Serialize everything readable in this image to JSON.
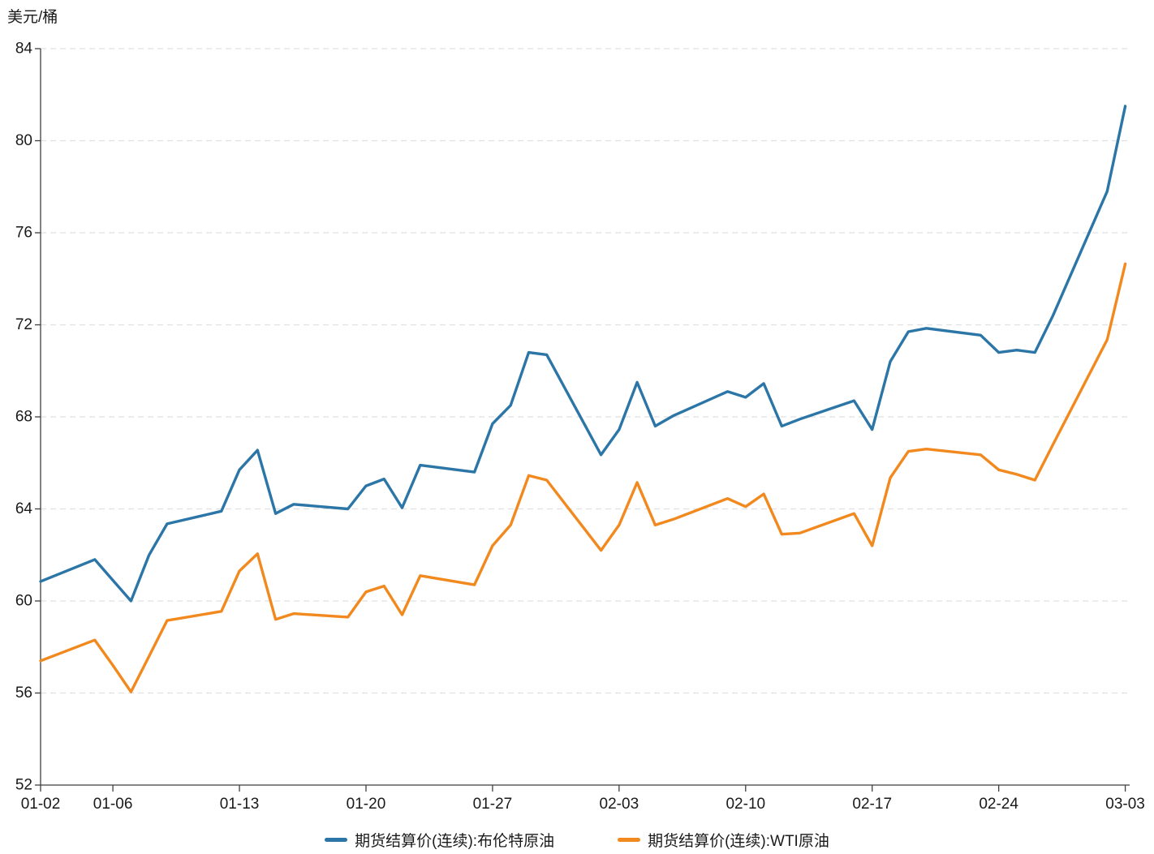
{
  "chart_data": {
    "type": "line",
    "title": "",
    "ylabel": "美元/桶",
    "ylim": [
      52,
      84
    ],
    "y_ticks": [
      52,
      56,
      60,
      64,
      68,
      72,
      76,
      80,
      84
    ],
    "grid": "horizontal-dashed",
    "legend_position": "bottom-center",
    "x_axis_mode": "calendar-days, trading days plotted, weekends skipped",
    "x_ticks": [
      {
        "label": "01-02",
        "offset": 0
      },
      {
        "label": "01-06",
        "offset": 4
      },
      {
        "label": "01-13",
        "offset": 11
      },
      {
        "label": "01-20",
        "offset": 18
      },
      {
        "label": "01-27",
        "offset": 25
      },
      {
        "label": "02-03",
        "offset": 32
      },
      {
        "label": "02-10",
        "offset": 39
      },
      {
        "label": "02-17",
        "offset": 46
      },
      {
        "label": "02-24",
        "offset": 53
      },
      {
        "label": "03-03",
        "offset": 60
      }
    ],
    "dates": [
      "01-02",
      "01-05",
      "01-06",
      "01-07",
      "01-08",
      "01-09",
      "01-12",
      "01-13",
      "01-14",
      "01-15",
      "01-16",
      "01-19",
      "01-20",
      "01-21",
      "01-22",
      "01-23",
      "01-26",
      "01-27",
      "01-28",
      "01-29",
      "01-30",
      "02-02",
      "02-03",
      "02-04",
      "02-05",
      "02-06",
      "02-09",
      "02-10",
      "02-11",
      "02-12",
      "02-13",
      "02-16",
      "02-17",
      "02-18",
      "02-19",
      "02-20",
      "02-23",
      "02-24",
      "02-25",
      "02-26",
      "02-27",
      "03-02",
      "03-03"
    ],
    "x_offsets": [
      0,
      3,
      4,
      5,
      6,
      7,
      10,
      11,
      12,
      13,
      14,
      17,
      18,
      19,
      20,
      21,
      24,
      25,
      26,
      27,
      28,
      31,
      32,
      33,
      34,
      35,
      38,
      39,
      40,
      41,
      42,
      45,
      46,
      47,
      48,
      49,
      52,
      53,
      54,
      55,
      56,
      59,
      60
    ],
    "series": [
      {
        "name": "期货结算价(连续):布伦特原油",
        "color": "#2c76a7",
        "values": [
          60.85,
          61.8,
          60.9,
          60.0,
          62.0,
          63.35,
          63.9,
          65.7,
          66.55,
          63.8,
          64.2,
          64.0,
          65.0,
          65.3,
          64.05,
          65.9,
          65.6,
          67.7,
          68.5,
          70.8,
          70.7,
          66.35,
          67.45,
          69.5,
          67.6,
          68.05,
          69.1,
          68.85,
          69.45,
          67.6,
          67.9,
          68.7,
          67.45,
          70.4,
          71.7,
          71.85,
          71.55,
          70.8,
          70.9,
          70.8,
          72.4,
          77.8,
          81.5
        ]
      },
      {
        "name": "期货结算价(连续):WTI原油",
        "color": "#f2891e",
        "values": [
          57.4,
          58.3,
          57.2,
          56.05,
          57.6,
          59.15,
          59.55,
          61.3,
          62.05,
          59.2,
          59.45,
          59.3,
          60.4,
          60.65,
          59.4,
          61.1,
          60.7,
          62.4,
          63.3,
          65.45,
          65.25,
          62.2,
          63.3,
          65.15,
          63.3,
          63.55,
          64.45,
          64.1,
          64.65,
          62.9,
          62.95,
          63.8,
          62.4,
          65.35,
          66.5,
          66.6,
          66.35,
          65.7,
          65.5,
          65.25,
          66.8,
          71.35,
          74.65
        ]
      }
    ],
    "style": {
      "grid_color": "#e0e0e0",
      "axis_color": "#3f3f3f",
      "text_color": "#1a1a1a",
      "line_width": 3.4
    }
  }
}
